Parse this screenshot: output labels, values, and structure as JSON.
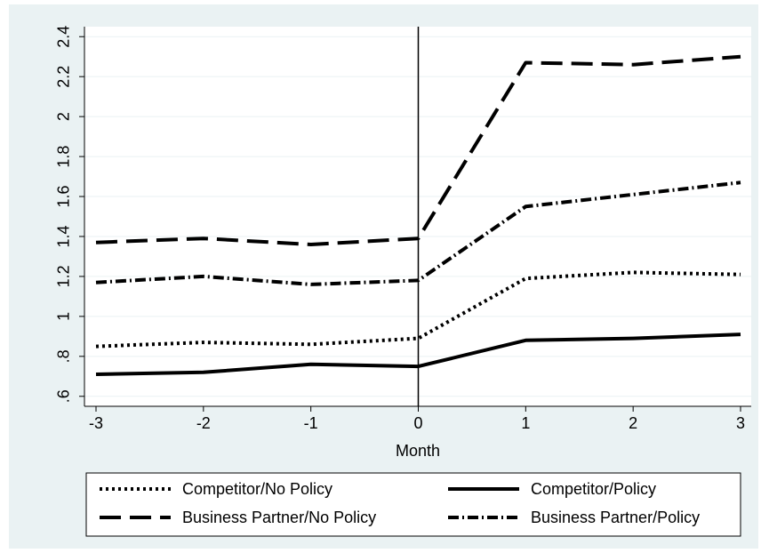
{
  "chart_data": {
    "type": "line",
    "title": "",
    "xlabel": "Month",
    "ylabel": "",
    "x": [
      -3,
      -2,
      -1,
      0,
      1,
      2,
      3
    ],
    "x_tick_labels": [
      "-3",
      "-2",
      "-1",
      "0",
      "1",
      "2",
      "3"
    ],
    "y_tick_values": [
      0.6,
      0.8,
      1.0,
      1.2,
      1.4,
      1.6,
      1.8,
      2.0,
      2.2,
      2.4
    ],
    "y_tick_labels": [
      ".6",
      ".8",
      "1",
      "1.2",
      "1.4",
      "1.6",
      "1.8",
      "2",
      "2.2",
      "2.4"
    ],
    "xlim": [
      -3,
      3
    ],
    "ylim": [
      0.55,
      2.45
    ],
    "grid": true,
    "reference_line_x": 0,
    "legend_position": "bottom",
    "series": [
      {
        "name": "Competitor/No Policy",
        "style": "dotted",
        "values": [
          0.85,
          0.87,
          0.86,
          0.89,
          1.19,
          1.22,
          1.21
        ]
      },
      {
        "name": "Competitor/Policy",
        "style": "solid",
        "values": [
          0.71,
          0.72,
          0.76,
          0.75,
          0.88,
          0.89,
          0.91
        ]
      },
      {
        "name": "Business Partner/No Policy",
        "style": "long-dash",
        "values": [
          1.37,
          1.39,
          1.36,
          1.39,
          2.27,
          2.26,
          2.3
        ]
      },
      {
        "name": "Business Partner/Policy",
        "style": "dash-dot",
        "values": [
          1.17,
          1.2,
          1.16,
          1.18,
          1.55,
          1.61,
          1.67
        ]
      }
    ],
    "colors": {
      "background": "#eaf2f3",
      "plot_area": "#ffffff",
      "grid": "#eaf2f3",
      "lines": "#000000"
    }
  }
}
